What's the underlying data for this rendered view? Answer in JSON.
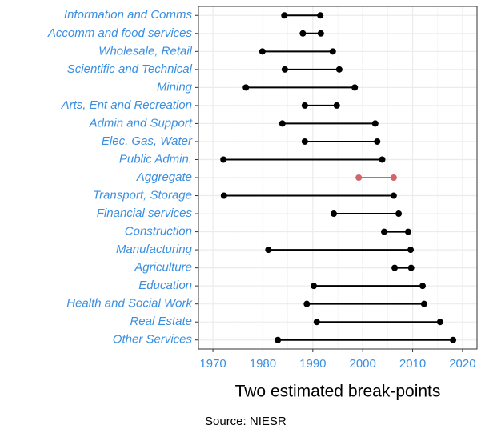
{
  "chart_data": {
    "type": "dumbbell",
    "categories": [
      "Information and Comms",
      "Accomm and food services",
      "Wholesale, Retail",
      "Scientific and Technical",
      "Mining",
      "Arts, Ent and Recreation",
      "Admin and Support",
      "Elec, Gas, Water",
      "Public Admin.",
      "Aggregate",
      "Transport, Storage",
      "Financial services",
      "Construction",
      "Manufacturing",
      "Agriculture",
      "Education",
      "Health and Social Work",
      "Real Estate",
      "Other Services"
    ],
    "start": [
      1984.3,
      1988.0,
      1979.9,
      1984.4,
      1976.6,
      1988.4,
      1983.9,
      1988.4,
      1972.1,
      1999.2,
      1972.2,
      1994.2,
      2004.3,
      1981.1,
      2006.4,
      1990.2,
      1988.8,
      1990.8,
      1983.0
    ],
    "end": [
      1991.5,
      1991.6,
      1994.0,
      1995.3,
      1998.4,
      1994.8,
      2002.5,
      2002.9,
      2003.9,
      2006.2,
      2006.2,
      2007.2,
      2009.1,
      2009.6,
      2009.7,
      2012.0,
      2012.3,
      2015.5,
      2018.1
    ],
    "colors": [
      "#000000",
      "#000000",
      "#000000",
      "#000000",
      "#000000",
      "#000000",
      "#000000",
      "#000000",
      "#000000",
      "#d0666a",
      "#000000",
      "#000000",
      "#000000",
      "#000000",
      "#000000",
      "#000000",
      "#000000",
      "#000000",
      "#000000"
    ],
    "xlim": [
      1967.1,
      2022.9
    ],
    "xticks": [
      1970,
      1980,
      1990,
      2000,
      2010,
      2020
    ],
    "xlabel": "Two estimated break-points",
    "caption": "Source: NIESR",
    "grid": true
  }
}
